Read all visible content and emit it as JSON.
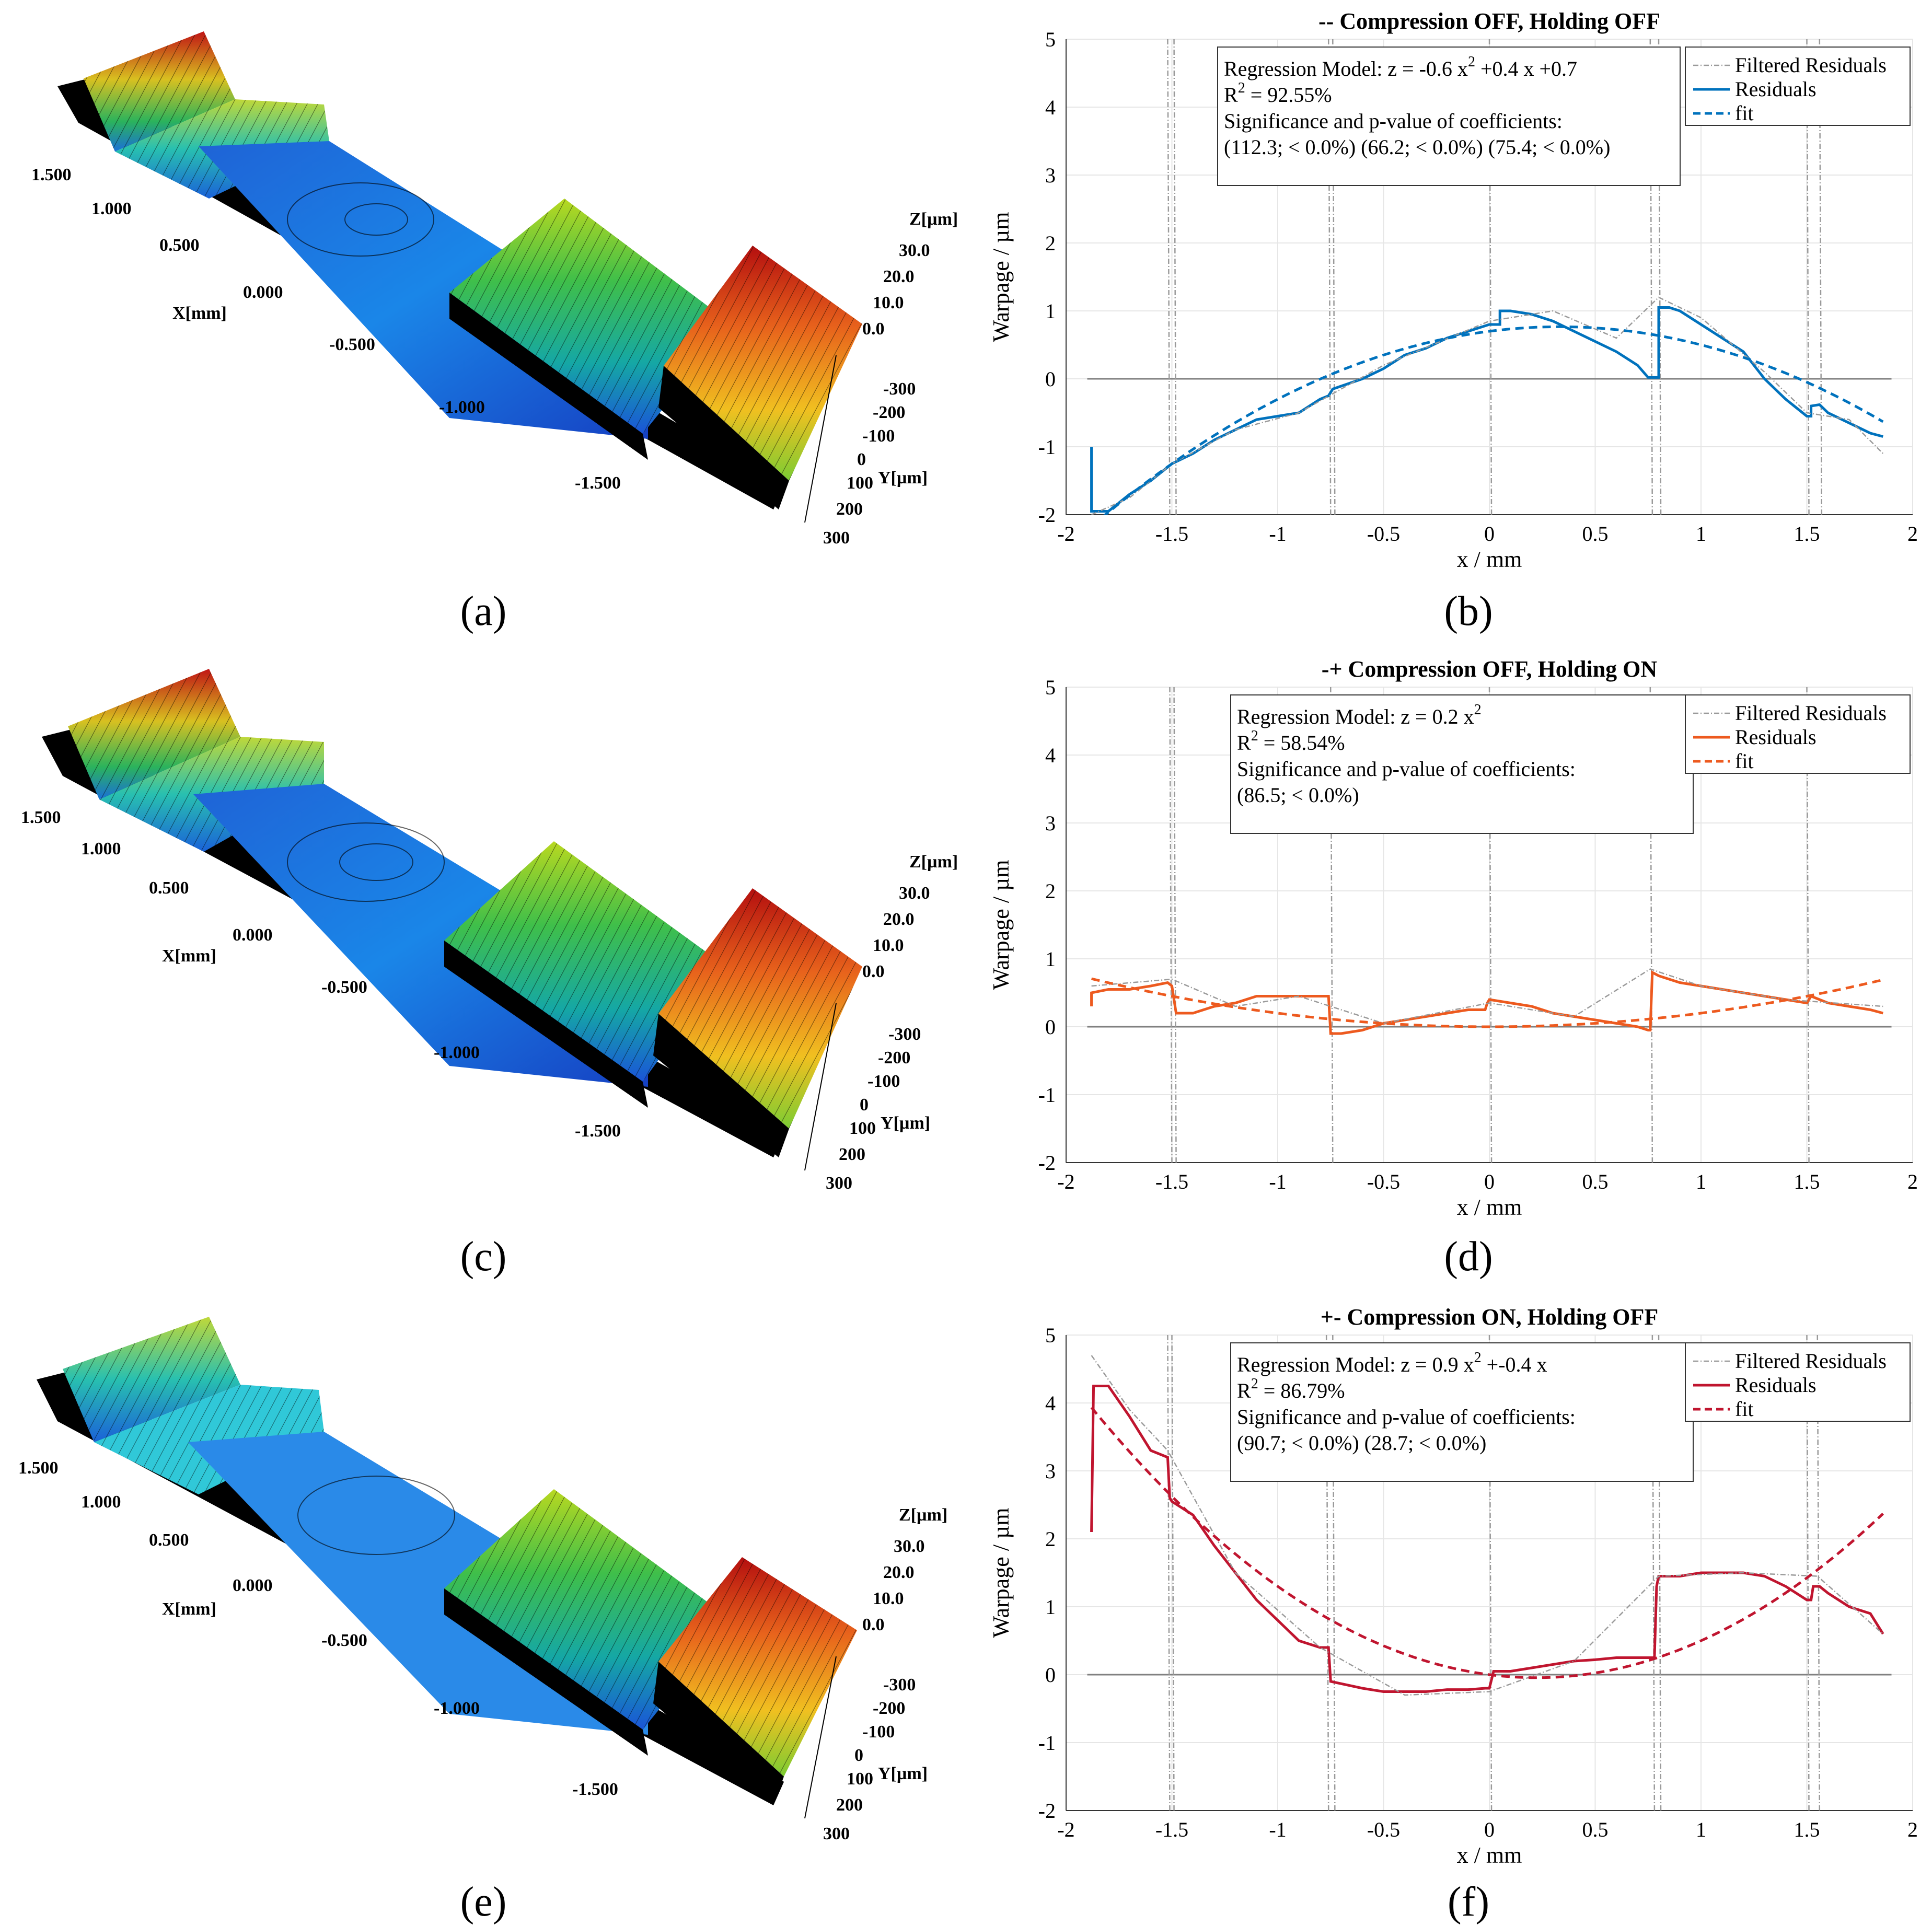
{
  "surfaces": [
    {
      "panel_label": "(a)",
      "x_axis_title": "X[mm]",
      "x_ticks": [
        "1.500",
        "1.000",
        "0.500",
        "0.000",
        "-0.500",
        "-1.000",
        "-1.500"
      ],
      "z_axis_title": "Z[µm]",
      "z_ticks": [
        "30.0",
        "20.0",
        "10.0",
        "0.0"
      ],
      "y_axis_title": "Y[µm]",
      "y_ticks": [
        "-300",
        "-200",
        "-100",
        "0",
        "100",
        "200",
        "300"
      ]
    },
    {
      "panel_label": "(c)",
      "x_axis_title": "X[mm]",
      "x_ticks": [
        "1.500",
        "1.000",
        "0.500",
        "0.000",
        "-0.500",
        "-1.000",
        "-1.500"
      ],
      "z_axis_title": "Z[µm]",
      "z_ticks": [
        "30.0",
        "20.0",
        "10.0",
        "0.0"
      ],
      "y_axis_title": "Y[µm]",
      "y_ticks": [
        "-300",
        "-200",
        "-100",
        "0",
        "100",
        "200",
        "300"
      ]
    },
    {
      "panel_label": "(e)",
      "x_axis_title": "X[mm]",
      "x_ticks": [
        "1.500",
        "1.000",
        "0.500",
        "0.000",
        "-0.500",
        "-1.000",
        "-1.500"
      ],
      "z_axis_title": "Z[µm]",
      "z_ticks": [
        "30.0",
        "20.0",
        "10.0",
        "0.0"
      ],
      "y_axis_title": "Y[µm]",
      "y_ticks": [
        "-300",
        "-200",
        "-100",
        "0",
        "100",
        "200",
        "300"
      ]
    }
  ],
  "colors": {
    "blue": "#0072BD",
    "orange": "#ED5A1F",
    "red": "#C0152F",
    "filtered": "#9a9a9a",
    "grid": "#e6e6e6",
    "zero": "#808080"
  },
  "chart_data": [
    {
      "panel_label": "(b)",
      "type": "line",
      "title": "-- Compression OFF, Holding OFF",
      "xlabel": "x / mm",
      "ylabel": "Warpage / µm",
      "xlim": [
        -2,
        2
      ],
      "ylim": [
        -2,
        5
      ],
      "x_ticks": [
        "-2",
        "-1.5",
        "-1",
        "-0.5",
        "0",
        "0.5",
        "1",
        "1.5",
        "2"
      ],
      "y_ticks": [
        "-2",
        "-1",
        "0",
        "1",
        "2",
        "3",
        "4",
        "5"
      ],
      "color": "#0072BD",
      "legend": [
        "Filtered Residuals",
        "Residuals",
        "fit"
      ],
      "annotation": {
        "model_prefix": "Regression Model: z = -0.6 x",
        "model_sup": "2",
        "model_suffix": " +0.4 x +0.7",
        "r2_label": "R",
        "r2_sup": "2",
        "r2_value": " = 92.55%",
        "sig_title": "Significance and p-value of coefficients:",
        "sig_values": "(112.3; < 0.0%) (66.2; < 0.0%) (75.4; < 0.0%)"
      },
      "fit_coeffs": [
        -0.6,
        0.4,
        0.7
      ],
      "spike_x": [
        -1.52,
        -1.49,
        -0.76,
        -0.74,
        0.0,
        0.76,
        0.8,
        1.5,
        1.56
      ],
      "series": [
        {
          "name": "Residuals",
          "x": [
            -1.88,
            -1.88,
            -1.8,
            -1.7,
            -1.6,
            -1.5,
            -1.4,
            -1.3,
            -1.2,
            -1.1,
            -1.0,
            -0.9,
            -0.8,
            -0.76,
            -0.74,
            -0.6,
            -0.5,
            -0.4,
            -0.3,
            -0.2,
            -0.1,
            0.0,
            0.05,
            0.05,
            0.1,
            0.2,
            0.3,
            0.4,
            0.5,
            0.6,
            0.7,
            0.75,
            0.8,
            0.8,
            0.85,
            0.9,
            1.0,
            1.1,
            1.2,
            1.3,
            1.4,
            1.5,
            1.52,
            1.52,
            1.56,
            1.6,
            1.7,
            1.8,
            1.86
          ],
          "y": [
            -1.0,
            -1.95,
            -1.95,
            -1.7,
            -1.5,
            -1.25,
            -1.1,
            -0.9,
            -0.75,
            -0.6,
            -0.55,
            -0.5,
            -0.3,
            -0.25,
            -0.15,
            0.0,
            0.15,
            0.35,
            0.45,
            0.6,
            0.7,
            0.8,
            0.8,
            1.0,
            1.0,
            0.95,
            0.85,
            0.7,
            0.55,
            0.4,
            0.2,
            0.02,
            0.02,
            1.05,
            1.05,
            1.0,
            0.8,
            0.6,
            0.4,
            0.0,
            -0.3,
            -0.55,
            -0.55,
            -0.4,
            -0.38,
            -0.5,
            -0.65,
            -0.8,
            -0.85
          ]
        },
        {
          "name": "Filtered Residuals",
          "x": [
            -1.88,
            -1.7,
            -1.5,
            -1.2,
            -0.9,
            -0.5,
            0.0,
            0.3,
            0.6,
            0.8,
            1.0,
            1.3,
            1.5,
            1.7,
            1.86
          ],
          "y": [
            -2.0,
            -1.75,
            -1.25,
            -0.75,
            -0.5,
            0.2,
            0.85,
            1.0,
            0.6,
            1.2,
            0.9,
            0.1,
            -0.5,
            -0.6,
            -1.1
          ]
        }
      ]
    },
    {
      "panel_label": "(d)",
      "type": "line",
      "title": "-+ Compression OFF, Holding ON",
      "xlabel": "x / mm",
      "ylabel": "Warpage / µm",
      "xlim": [
        -2,
        2
      ],
      "ylim": [
        -2,
        5
      ],
      "x_ticks": [
        "-2",
        "-1.5",
        "-1",
        "-0.5",
        "0",
        "0.5",
        "1",
        "1.5",
        "2"
      ],
      "y_ticks": [
        "-2",
        "-1",
        "0",
        "1",
        "2",
        "3",
        "4",
        "5"
      ],
      "color": "#ED5A1F",
      "legend": [
        "Filtered Residuals",
        "Residuals",
        "fit"
      ],
      "annotation": {
        "model_prefix": "Regression Model: z = 0.2 x",
        "model_sup": "2",
        "model_suffix": "",
        "r2_label": "R",
        "r2_sup": "2",
        "r2_value": " = 58.54%",
        "sig_title": "Significance and p-value of coefficients:",
        "sig_values": "(86.5; < 0.0%)"
      },
      "fit_coeffs": [
        0.2,
        0,
        0
      ],
      "spike_x": [
        -1.51,
        -1.49,
        -0.75,
        0.0,
        0.76,
        1.5
      ],
      "series": [
        {
          "name": "Residuals",
          "x": [
            -1.88,
            -1.88,
            -1.8,
            -1.7,
            -1.6,
            -1.52,
            -1.5,
            -1.48,
            -1.4,
            -1.3,
            -1.2,
            -1.1,
            -1.0,
            -0.9,
            -0.8,
            -0.76,
            -0.75,
            -0.7,
            -0.6,
            -0.5,
            -0.4,
            -0.3,
            -0.2,
            -0.1,
            -0.02,
            -0.01,
            0.0,
            0.1,
            0.2,
            0.3,
            0.4,
            0.5,
            0.6,
            0.7,
            0.75,
            0.76,
            0.77,
            0.8,
            0.9,
            1.0,
            1.1,
            1.2,
            1.3,
            1.4,
            1.5,
            1.52,
            1.6,
            1.7,
            1.8,
            1.86
          ],
          "y": [
            0.3,
            0.5,
            0.55,
            0.55,
            0.6,
            0.65,
            0.6,
            0.2,
            0.2,
            0.3,
            0.35,
            0.45,
            0.45,
            0.45,
            0.45,
            0.45,
            -0.1,
            -0.1,
            -0.05,
            0.05,
            0.1,
            0.15,
            0.2,
            0.25,
            0.25,
            0.35,
            0.4,
            0.35,
            0.3,
            0.2,
            0.15,
            0.1,
            0.05,
            0.0,
            -0.05,
            -0.05,
            0.8,
            0.75,
            0.65,
            0.6,
            0.55,
            0.5,
            0.45,
            0.4,
            0.35,
            0.45,
            0.35,
            0.3,
            0.25,
            0.2
          ]
        },
        {
          "name": "Filtered Residuals",
          "x": [
            -1.88,
            -1.5,
            -1.2,
            -0.9,
            -0.5,
            0.0,
            0.4,
            0.76,
            1.0,
            1.4,
            1.86
          ],
          "y": [
            0.6,
            0.7,
            0.3,
            0.45,
            0.05,
            0.35,
            0.15,
            0.85,
            0.6,
            0.4,
            0.3
          ]
        }
      ]
    },
    {
      "panel_label": "(f)",
      "type": "line",
      "title": "+- Compression ON, Holding OFF",
      "xlabel": "x / mm",
      "ylabel": "Warpage / µm",
      "xlim": [
        -2,
        2
      ],
      "ylim": [
        -2,
        5
      ],
      "x_ticks": [
        "-2",
        "-1.5",
        "-1",
        "-0.5",
        "0",
        "0.5",
        "1",
        "1.5",
        "2"
      ],
      "y_ticks": [
        "-2",
        "-1",
        "0",
        "1",
        "2",
        "3",
        "4",
        "5"
      ],
      "color": "#C0152F",
      "legend": [
        "Filtered Residuals",
        "Residuals",
        "fit"
      ],
      "annotation": {
        "model_prefix": "Regression Model: z = 0.9 x",
        "model_sup": "2",
        "model_suffix": " +-0.4 x",
        "r2_label": "R",
        "r2_sup": "2",
        "r2_value": " = 86.79%",
        "sig_title": "Significance and p-value of coefficients:",
        "sig_values": "(90.7; < 0.0%) (28.7; < 0.0%)"
      },
      "fit_coeffs": [
        0.9,
        -0.4,
        0
      ],
      "spike_x": [
        -1.52,
        -1.5,
        -0.77,
        -0.74,
        0.0,
        0.77,
        0.8,
        1.5,
        1.55
      ],
      "series": [
        {
          "name": "Residuals",
          "x": [
            -1.88,
            -1.87,
            -1.8,
            -1.7,
            -1.6,
            -1.52,
            -1.51,
            -1.5,
            -1.4,
            -1.3,
            -1.2,
            -1.1,
            -1.0,
            -0.9,
            -0.8,
            -0.76,
            -0.75,
            -0.6,
            -0.5,
            -0.4,
            -0.3,
            -0.2,
            -0.1,
            -0.02,
            0.0,
            0.02,
            0.1,
            0.2,
            0.3,
            0.4,
            0.5,
            0.6,
            0.7,
            0.78,
            0.79,
            0.8,
            0.9,
            1.0,
            1.1,
            1.2,
            1.3,
            1.4,
            1.5,
            1.52,
            1.53,
            1.56,
            1.6,
            1.7,
            1.8,
            1.86
          ],
          "y": [
            2.1,
            4.25,
            4.25,
            3.8,
            3.3,
            3.2,
            2.6,
            2.55,
            2.35,
            1.9,
            1.5,
            1.1,
            0.8,
            0.5,
            0.4,
            0.4,
            -0.1,
            -0.2,
            -0.25,
            -0.25,
            -0.25,
            -0.22,
            -0.22,
            -0.2,
            -0.2,
            0.05,
            0.05,
            0.1,
            0.15,
            0.2,
            0.22,
            0.25,
            0.25,
            0.25,
            1.3,
            1.45,
            1.45,
            1.5,
            1.5,
            1.5,
            1.45,
            1.3,
            1.1,
            1.1,
            1.3,
            1.3,
            1.2,
            1.0,
            0.9,
            0.6
          ]
        },
        {
          "name": "Filtered Residuals",
          "x": [
            -1.88,
            -1.7,
            -1.52,
            -1.2,
            -0.8,
            -0.4,
            0.0,
            0.4,
            0.8,
            1.2,
            1.55,
            1.86
          ],
          "y": [
            4.7,
            3.9,
            3.3,
            1.5,
            0.4,
            -0.3,
            -0.25,
            0.2,
            1.45,
            1.5,
            1.45,
            0.6
          ]
        }
      ]
    }
  ]
}
